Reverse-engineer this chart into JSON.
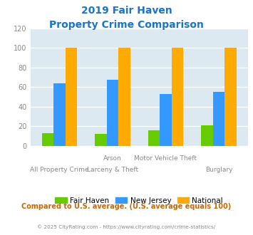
{
  "title_line1": "2019 Fair Haven",
  "title_line2": "Property Crime Comparison",
  "title_color": "#1874cd",
  "cat_labels_row1": [
    "",
    "Arson",
    "Motor Vehicle Theft",
    ""
  ],
  "cat_labels_row2": [
    "All Property Crime",
    "Larceny & Theft",
    "",
    "Burglary"
  ],
  "fair_haven": [
    13,
    12,
    16,
    21
  ],
  "new_jersey": [
    64,
    67,
    53,
    55
  ],
  "national": [
    100,
    100,
    100,
    100
  ],
  "fair_haven_color": "#66cc00",
  "new_jersey_color": "#3399ff",
  "national_color": "#ffaa00",
  "ylim": [
    0,
    120
  ],
  "yticks": [
    0,
    20,
    40,
    60,
    80,
    100,
    120
  ],
  "background_color": "#dce9f0",
  "grid_color": "#ffffff",
  "footnote": "Compared to U.S. average. (U.S. average equals 100)",
  "footnote_color": "#cc6600",
  "credit": "© 2025 CityRating.com - https://www.cityrating.com/crime-statistics/",
  "credit_color": "#888888",
  "legend_labels": [
    "Fair Haven",
    "New Jersey",
    "National"
  ]
}
